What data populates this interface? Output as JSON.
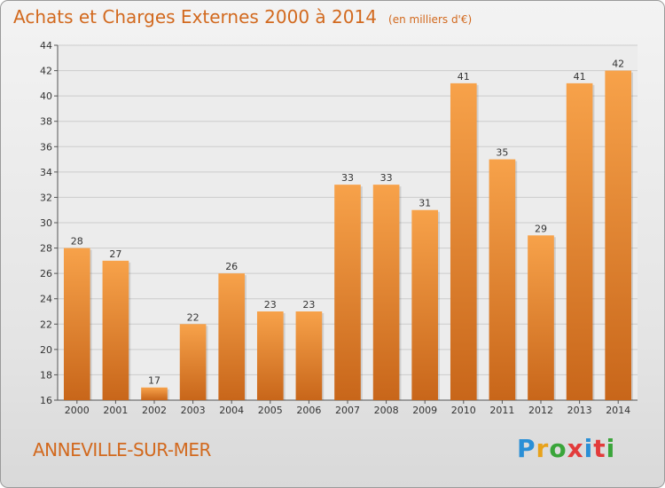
{
  "header": {
    "title": "Achats et Charges Externes 2000 à 2014",
    "unit": "(en milliers d'€)"
  },
  "footer": {
    "commune": "ANNEVILLE-SUR-MER",
    "brand": "Proxiti",
    "brand_colors": [
      "#2a8fd6",
      "#e8a21a",
      "#3aa53a",
      "#e23b3b",
      "#2a8fd6",
      "#e23b3b",
      "#3aa53a"
    ]
  },
  "colors": {
    "title": "#d2691e",
    "bar_light": "#f7a24a",
    "bar_dark": "#c8661a",
    "grid": "#cccccc"
  },
  "chart_data": {
    "type": "bar",
    "title": "Achats et Charges Externes 2000 à 2014",
    "subtitle": "(en milliers d'€)",
    "categories": [
      "2000",
      "2001",
      "2002",
      "2003",
      "2004",
      "2005",
      "2006",
      "2007",
      "2008",
      "2009",
      "2010",
      "2011",
      "2012",
      "2013",
      "2014"
    ],
    "values": [
      28,
      27,
      17,
      22,
      26,
      23,
      23,
      33,
      33,
      31,
      41,
      35,
      29,
      41,
      42
    ],
    "ylim": [
      16,
      44
    ],
    "yticks": [
      16,
      18,
      20,
      22,
      24,
      26,
      28,
      30,
      32,
      34,
      36,
      38,
      40,
      42,
      44
    ],
    "grid": true,
    "data_labels": true
  }
}
